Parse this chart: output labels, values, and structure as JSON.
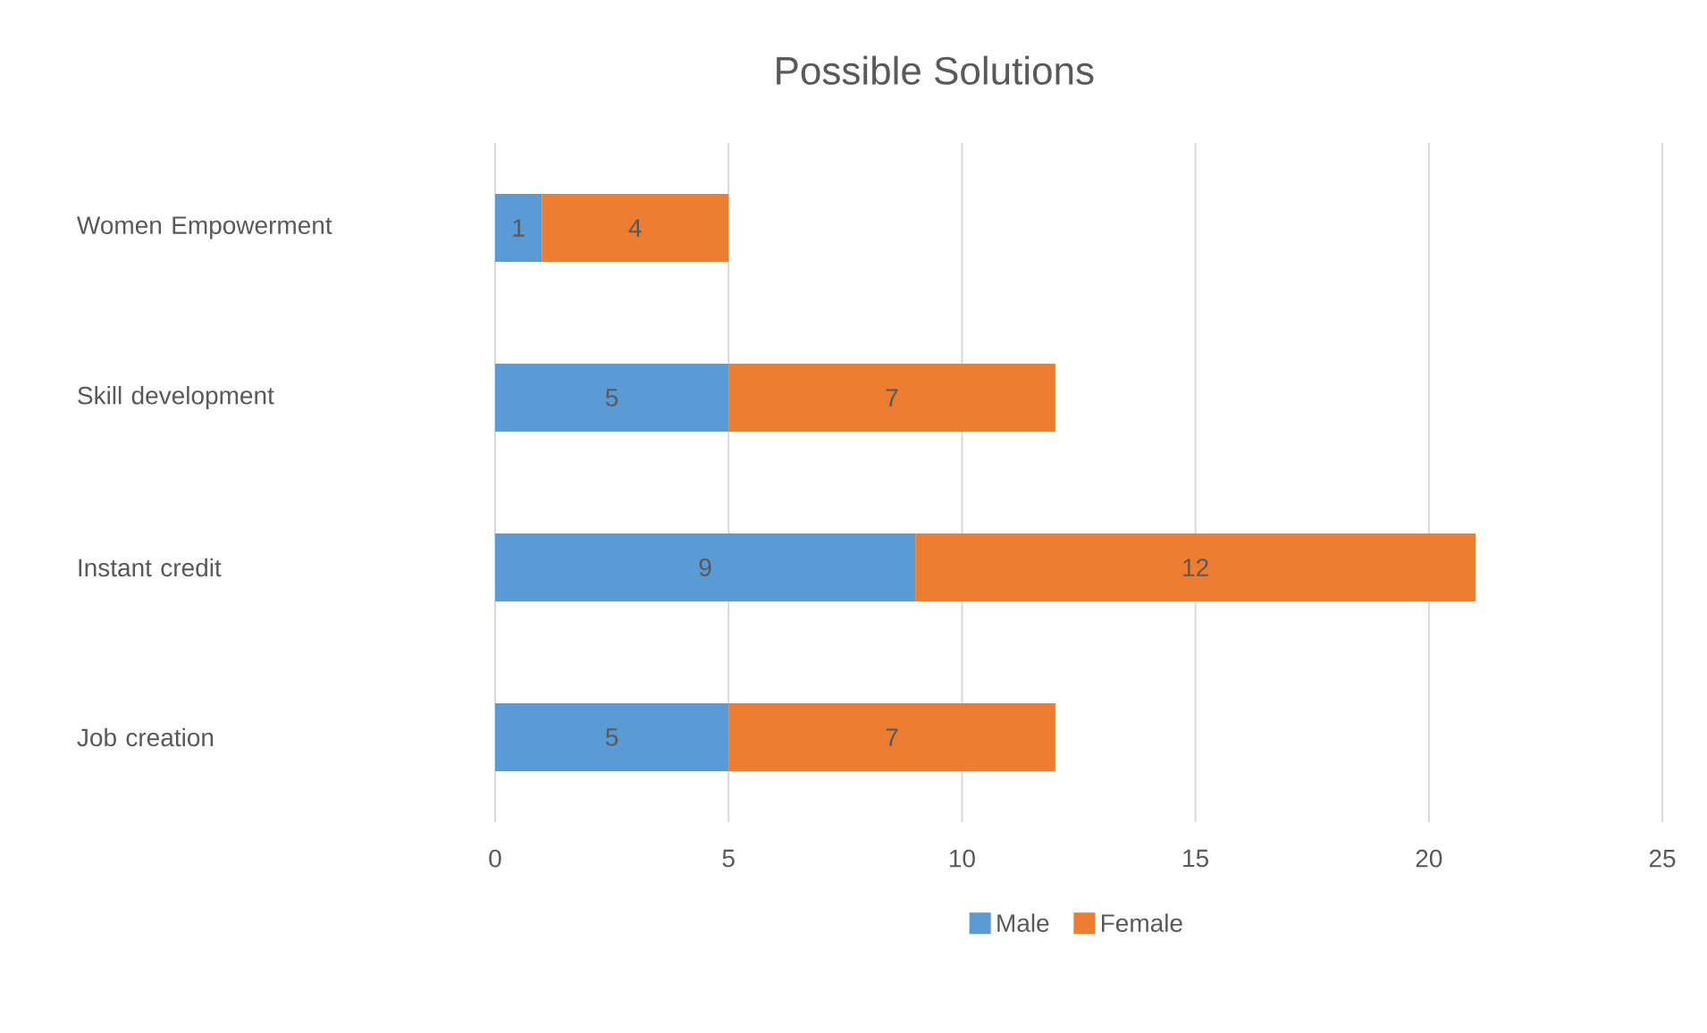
{
  "chart_data": {
    "type": "bar",
    "orientation": "horizontal",
    "stacked": true,
    "title": "Possible Solutions",
    "categories": [
      "Women Empowerment",
      "Skill development",
      "Instant credit",
      "Job creation"
    ],
    "series": [
      {
        "name": "Male",
        "color": "#5b9bd5",
        "values": [
          1,
          5,
          9,
          5
        ]
      },
      {
        "name": "Female",
        "color": "#ed7d31",
        "values": [
          4,
          7,
          12,
          7
        ]
      }
    ],
    "xlim": [
      0,
      25
    ],
    "xticks": [
      0,
      5,
      10,
      15,
      20,
      25
    ],
    "grid": "x",
    "legend": "bottom",
    "data_labels": true
  }
}
